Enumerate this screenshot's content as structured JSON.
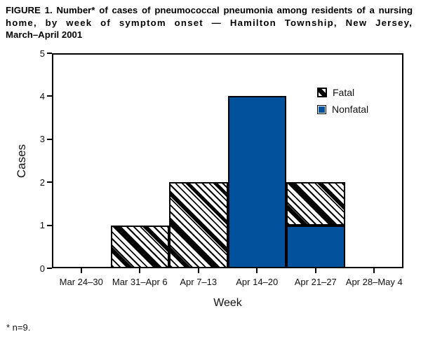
{
  "title": {
    "line1": "FIGURE 1. Number* of cases of pneumococcal pneumonia among residents of a nursing",
    "line2": "home, by week of symptom onset — Hamilton Township, New Jersey,",
    "line3": "March–April 2001"
  },
  "footnote": "* n=9.",
  "chart_data": {
    "type": "bar",
    "stacked": true,
    "title": "",
    "xlabel": "Week",
    "ylabel": "Cases",
    "categories": [
      "Mar 24–30",
      "Mar 31–Apr 6",
      "Apr 7–13",
      "Apr 14–20",
      "Apr 21–27",
      "Apr 28–May 4"
    ],
    "series": [
      {
        "name": "Fatal",
        "style": "hatched",
        "values": [
          0,
          1,
          2,
          0,
          1,
          0
        ]
      },
      {
        "name": "Nonfatal",
        "style": "solid-blue",
        "values": [
          0,
          0,
          0,
          4,
          1,
          0
        ]
      }
    ],
    "stack_order_bottom_to_top": [
      "Nonfatal",
      "Fatal"
    ],
    "total_n": 9,
    "ylim": [
      0,
      5
    ],
    "yticks": [
      0,
      1,
      2,
      3,
      4,
      5
    ],
    "grid": false,
    "legend_position": "top-right",
    "colors": {
      "nonfatal_blue": "#02519C",
      "bar_border": "#000000",
      "text": "#111111"
    }
  }
}
